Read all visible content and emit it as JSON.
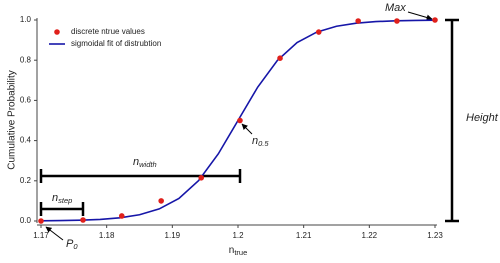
{
  "chart_data": {
    "type": "scatter",
    "y_label": "Cumulative Probability",
    "x_label": {
      "base": "n",
      "sub": "true"
    },
    "xlim": [
      1.17,
      1.23
    ],
    "xticks": [
      1.17,
      1.18,
      1.19,
      1.2,
      1.21,
      1.22,
      1.23
    ],
    "ylim": [
      0,
      1
    ],
    "yticks": [
      {
        "value": 0,
        "label": "0.0"
      },
      {
        "value": 0.2,
        "label": "0.2"
      },
      {
        "value": 0.4,
        "label": "0.4"
      },
      {
        "value": 0.6,
        "label": "0.6"
      },
      {
        "value": 0.8,
        "label": "0.8"
      },
      {
        "value": 1,
        "label": "1.0"
      }
    ],
    "legend": "upper left",
    "series": [
      {
        "name": "discrete ntrue values",
        "color": "#e0201b",
        "kind": "points",
        "x": [
          1.17,
          1.1764,
          1.1823,
          1.1883,
          1.1944,
          1.2003,
          1.2064,
          1.2123,
          1.2183,
          1.2242,
          1.23
        ],
        "values": [
          0.0,
          0.005,
          0.025,
          0.1,
          0.215,
          0.5,
          0.81,
          0.94,
          0.995,
          0.995,
          1.0
        ]
      },
      {
        "name": "sigmoidal fit of distrubtion",
        "color": "#1616a8",
        "kind": "line",
        "x": [
          1.17,
          1.173,
          1.176,
          1.179,
          1.182,
          1.185,
          1.188,
          1.191,
          1.194,
          1.197,
          1.2,
          1.203,
          1.206,
          1.209,
          1.212,
          1.215,
          1.218,
          1.221,
          1.224,
          1.227,
          1.23
        ],
        "values": [
          0.001,
          0.002,
          0.004,
          0.008,
          0.016,
          0.031,
          0.06,
          0.112,
          0.201,
          0.334,
          0.5,
          0.666,
          0.799,
          0.888,
          0.94,
          0.969,
          0.984,
          0.992,
          0.996,
          0.998,
          0.999
        ]
      }
    ],
    "annotations": {
      "max": "Max",
      "height": "Height",
      "n_half": {
        "base": "n",
        "sub": "0.5"
      },
      "n_width": {
        "base": "n",
        "sub": "width"
      },
      "n_step": {
        "base": "n",
        "sub": "step"
      },
      "p0": {
        "base": "P",
        "sub": "0"
      }
    }
  }
}
